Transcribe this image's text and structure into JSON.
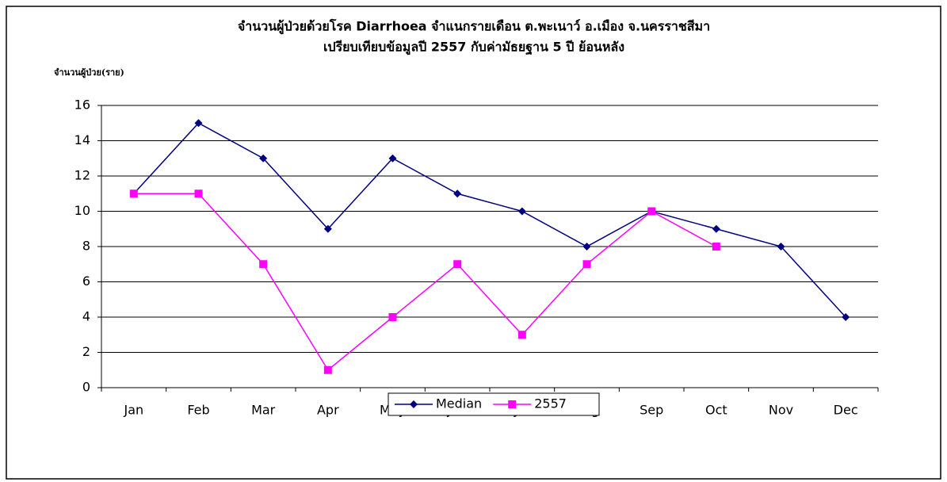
{
  "chart_data": {
    "type": "line",
    "title": "จำนวนผู้ป่วยด้วยโรค  Diarrhoea จำแนกรายเดือน  ต.พะเนาว์ อ.เมือง จ.นครราชสีมา",
    "subtitle": "เปรียบเทียบข้อมูลปี  2557  กับค่ามัธยฐาน 5 ปี ย้อนหลัง",
    "y_label": "จำนวนผู้ป่วย(ราย)",
    "categories": [
      "Jan",
      "Feb",
      "Mar",
      "Apr",
      "May",
      "Jun",
      "Jul",
      "Aug",
      "Sep",
      "Oct",
      "Nov",
      "Dec"
    ],
    "series": [
      {
        "name": "Median",
        "color": "#000080",
        "marker": "diamond",
        "values": [
          11,
          15,
          13,
          9,
          13,
          11,
          10,
          8,
          10,
          9,
          8,
          4
        ]
      },
      {
        "name": "2557",
        "color": "#ff00ff",
        "marker": "square",
        "values": [
          11,
          11,
          7,
          1,
          4,
          7,
          3,
          7,
          10,
          8,
          null,
          null
        ]
      }
    ],
    "ylim": [
      0,
      16
    ],
    "yticks": [
      0,
      2,
      4,
      6,
      8,
      10,
      12,
      14,
      16
    ],
    "grid": true,
    "legend": "bottom"
  }
}
